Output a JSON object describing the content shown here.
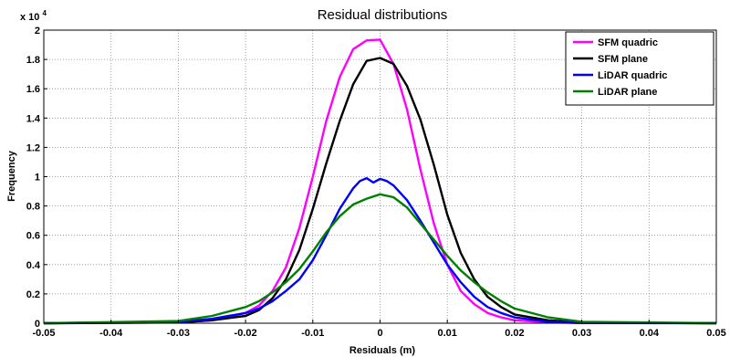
{
  "chart_data": {
    "type": "line",
    "title": "Residual distributions",
    "xlabel": "Residuals (m)",
    "ylabel": "Frequency",
    "y_exponent_label": "x 10",
    "y_exponent_power": "4",
    "xlim": [
      -0.05,
      0.05
    ],
    "ylim": [
      0,
      20000
    ],
    "x_ticks": [
      -0.05,
      -0.04,
      -0.03,
      -0.02,
      -0.01,
      0,
      0.01,
      0.02,
      0.03,
      0.04,
      0.05
    ],
    "x_tick_labels": [
      "-0.05",
      "-0.04",
      "-0.03",
      "-0.02",
      "-0.01",
      "0",
      "0.01",
      "0.02",
      "0.03",
      "0.04",
      "0.05"
    ],
    "y_ticks": [
      0,
      2000,
      4000,
      6000,
      8000,
      10000,
      12000,
      14000,
      16000,
      18000,
      20000
    ],
    "y_tick_labels": [
      "0",
      "0.2",
      "0.4",
      "0.6",
      "0.8",
      "1",
      "1.2",
      "1.4",
      "1.6",
      "1.8",
      "2"
    ],
    "grid": true,
    "legend_position": "top-right",
    "series": [
      {
        "name": "SFM quadric",
        "color": "#ff00ff",
        "x": [
          -0.05,
          -0.03,
          -0.025,
          -0.02,
          -0.018,
          -0.016,
          -0.014,
          -0.012,
          -0.01,
          -0.008,
          -0.006,
          -0.004,
          -0.002,
          0,
          0.002,
          0.004,
          0.006,
          0.008,
          0.01,
          0.012,
          0.014,
          0.016,
          0.018,
          0.02,
          0.025,
          0.03,
          0.05
        ],
        "y": [
          0,
          50,
          200,
          700,
          1200,
          2200,
          3800,
          6500,
          10000,
          13800,
          16800,
          18700,
          19300,
          19350,
          17700,
          14600,
          10500,
          6800,
          4000,
          2200,
          1300,
          700,
          400,
          200,
          60,
          10,
          0
        ]
      },
      {
        "name": "SFM plane",
        "color": "#000000",
        "x": [
          -0.05,
          -0.03,
          -0.025,
          -0.02,
          -0.018,
          -0.016,
          -0.014,
          -0.012,
          -0.01,
          -0.008,
          -0.006,
          -0.004,
          -0.002,
          0,
          0.002,
          0.004,
          0.006,
          0.008,
          0.01,
          0.012,
          0.014,
          0.016,
          0.018,
          0.02,
          0.025,
          0.03,
          0.05
        ],
        "y": [
          0,
          50,
          200,
          500,
          900,
          1700,
          3000,
          5000,
          7800,
          10900,
          13800,
          16300,
          17900,
          18100,
          17700,
          16200,
          13900,
          10800,
          7400,
          4800,
          3000,
          1800,
          1100,
          600,
          200,
          50,
          0
        ]
      },
      {
        "name": "LiDAR quadric",
        "color": "#0000ff",
        "x": [
          -0.05,
          -0.03,
          -0.025,
          -0.02,
          -0.018,
          -0.016,
          -0.014,
          -0.012,
          -0.01,
          -0.008,
          -0.006,
          -0.004,
          -0.003,
          -0.002,
          -0.001,
          0,
          0.001,
          0.002,
          0.004,
          0.006,
          0.008,
          0.01,
          0.012,
          0.014,
          0.016,
          0.018,
          0.02,
          0.025,
          0.03,
          0.05
        ],
        "y": [
          0,
          100,
          300,
          700,
          1000,
          1500,
          2200,
          3000,
          4300,
          6000,
          7800,
          9200,
          9700,
          9900,
          9600,
          9850,
          9700,
          9400,
          8400,
          7000,
          5500,
          4000,
          2800,
          1800,
          1100,
          700,
          400,
          100,
          20,
          0
        ]
      },
      {
        "name": "LiDAR plane",
        "color": "#008000",
        "x": [
          -0.05,
          -0.03,
          -0.025,
          -0.02,
          -0.018,
          -0.016,
          -0.014,
          -0.012,
          -0.01,
          -0.008,
          -0.006,
          -0.004,
          -0.002,
          0,
          0.002,
          0.004,
          0.006,
          0.008,
          0.01,
          0.012,
          0.014,
          0.016,
          0.018,
          0.02,
          0.025,
          0.03,
          0.05
        ],
        "y": [
          0,
          150,
          500,
          1100,
          1500,
          2100,
          2800,
          3700,
          4900,
          6200,
          7300,
          8100,
          8500,
          8800,
          8600,
          7900,
          6800,
          5700,
          4600,
          3600,
          2800,
          2100,
          1500,
          1000,
          400,
          100,
          0
        ]
      }
    ]
  }
}
